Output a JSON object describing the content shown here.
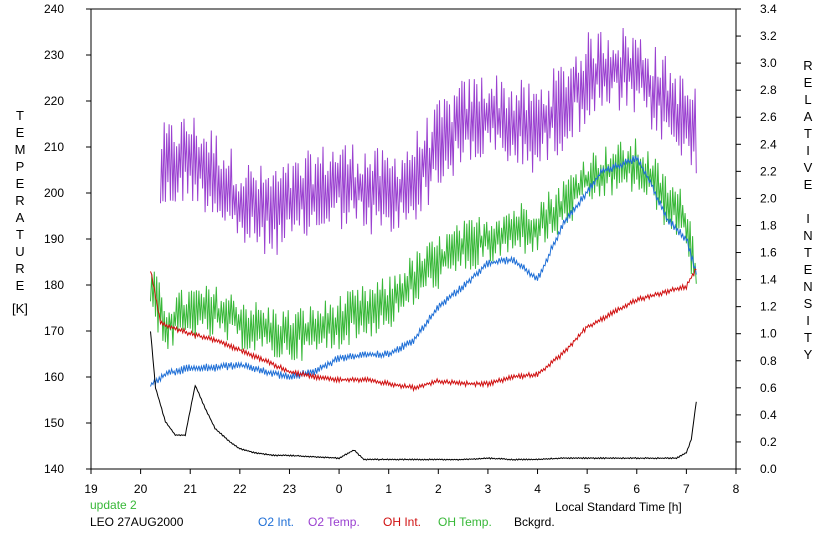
{
  "chart_data": {
    "type": "line",
    "title": "",
    "y_left_label": "TEMPERATURE",
    "y_left_unit": "[K]",
    "y_right_label": "RELATIVE INTENSITY",
    "xlabel": "Local Standard Time [h]",
    "x_tick_labels": [
      "19",
      "20",
      "21",
      "22",
      "23",
      "0",
      "1",
      "2",
      "3",
      "4",
      "5",
      "6",
      "7",
      "8"
    ],
    "xlim": [
      19,
      32
    ],
    "ylim_left": [
      140,
      240
    ],
    "y_left_ticks": [
      140,
      150,
      160,
      170,
      180,
      190,
      200,
      210,
      220,
      230,
      240
    ],
    "ylim_right": [
      0.0,
      3.4
    ],
    "y_right_ticks": [
      "0.0",
      "0.2",
      "0.4",
      "0.6",
      "0.8",
      "1.0",
      "1.2",
      "1.4",
      "1.6",
      "1.8",
      "2.0",
      "2.2",
      "2.4",
      "2.6",
      "2.8",
      "3.0",
      "3.2",
      "3.4"
    ],
    "grid": false,
    "legend_placement": "bottom",
    "annotation_update": "update 2",
    "station_date": "LEO 27AUG2000",
    "series": [
      {
        "name": "O2 Int.",
        "color": "#1f6fd6",
        "axis": "right",
        "noise": 0.03,
        "x": [
          20.2,
          20.5,
          21.0,
          21.5,
          22.0,
          22.5,
          23.0,
          23.5,
          24.0,
          24.5,
          25.0,
          25.5,
          26.0,
          26.5,
          27.0,
          27.5,
          28.0,
          28.5,
          29.0,
          29.3,
          29.7,
          30.0,
          30.3,
          30.6,
          31.0,
          31.2
        ],
        "y": [
          0.62,
          0.7,
          0.75,
          0.75,
          0.77,
          0.72,
          0.68,
          0.72,
          0.82,
          0.84,
          0.85,
          0.95,
          1.2,
          1.35,
          1.52,
          1.55,
          1.4,
          1.8,
          2.05,
          2.2,
          2.25,
          2.3,
          2.1,
          1.85,
          1.7,
          1.45
        ]
      },
      {
        "name": "O2 Temp.",
        "color": "#9a40d0",
        "axis": "left",
        "noise": 10,
        "x": [
          20.4,
          20.8,
          21.0,
          21.5,
          22.0,
          22.5,
          23.0,
          23.5,
          24.0,
          24.5,
          25.0,
          25.5,
          26.0,
          26.5,
          27.0,
          27.5,
          28.0,
          28.5,
          29.0,
          29.5,
          30.0,
          30.5,
          31.0,
          31.2
        ],
        "y": [
          205,
          207,
          208,
          204,
          198,
          196,
          197,
          200,
          202,
          201,
          199,
          203,
          210,
          215,
          217,
          215,
          214,
          219,
          225,
          227,
          226,
          221,
          215,
          214
        ]
      },
      {
        "name": "OH Int.",
        "color": "#d01010",
        "axis": "right",
        "noise": 0.02,
        "x": [
          20.2,
          20.4,
          20.6,
          21.0,
          21.5,
          22.0,
          22.5,
          23.0,
          23.5,
          24.0,
          24.5,
          25.0,
          25.5,
          26.0,
          26.5,
          27.0,
          27.5,
          28.0,
          28.5,
          29.0,
          29.5,
          30.0,
          30.5,
          31.0,
          31.2
        ],
        "y": [
          1.48,
          1.08,
          1.05,
          1.0,
          0.95,
          0.88,
          0.8,
          0.72,
          0.68,
          0.66,
          0.66,
          0.63,
          0.6,
          0.65,
          0.63,
          0.63,
          0.68,
          0.7,
          0.85,
          1.05,
          1.15,
          1.25,
          1.3,
          1.35,
          1.48
        ]
      },
      {
        "name": "OH Temp.",
        "color": "#38b838",
        "axis": "left",
        "noise": 6,
        "x": [
          20.2,
          20.5,
          20.8,
          21.0,
          21.5,
          22.0,
          22.5,
          23.0,
          23.5,
          24.0,
          24.5,
          25.0,
          25.5,
          26.0,
          26.5,
          27.0,
          27.5,
          28.0,
          28.5,
          29.0,
          29.5,
          30.0,
          30.3,
          30.6,
          31.0,
          31.2
        ],
        "y": [
          180,
          171,
          173,
          174,
          174,
          172,
          170,
          169,
          170,
          172,
          174,
          176,
          181,
          185,
          188,
          190,
          192,
          193,
          197,
          203,
          205,
          206,
          203,
          198,
          194,
          182
        ]
      },
      {
        "name": "Bckgrd.",
        "color": "#000000",
        "axis": "right",
        "noise": 0.005,
        "x": [
          20.2,
          20.3,
          20.5,
          20.7,
          20.9,
          21.1,
          21.3,
          21.5,
          21.8,
          22.0,
          22.3,
          22.7,
          23.0,
          23.5,
          24.0,
          24.3,
          24.5,
          25.0,
          25.5,
          26.0,
          26.5,
          27.0,
          27.5,
          28.0,
          28.5,
          29.0,
          29.5,
          30.0,
          30.5,
          30.8,
          31.0,
          31.1,
          31.2
        ],
        "y": [
          1.02,
          0.6,
          0.35,
          0.25,
          0.25,
          0.62,
          0.45,
          0.3,
          0.2,
          0.15,
          0.12,
          0.1,
          0.1,
          0.09,
          0.08,
          0.14,
          0.07,
          0.07,
          0.07,
          0.07,
          0.07,
          0.08,
          0.07,
          0.07,
          0.08,
          0.08,
          0.08,
          0.08,
          0.08,
          0.08,
          0.12,
          0.22,
          0.5
        ]
      }
    ]
  }
}
